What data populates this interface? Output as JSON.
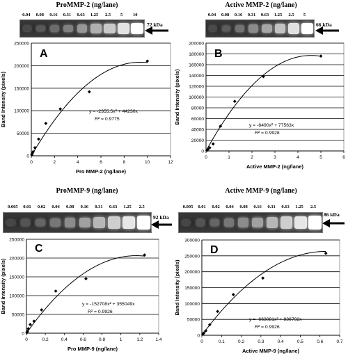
{
  "panels": [
    {
      "id": "A",
      "title": "ProMMP-2 (ng/lane)",
      "lane_labels": [
        "0.04",
        "0.08",
        "0.16",
        "0.31",
        "0.63",
        "1.25",
        "2.5",
        "5",
        "10"
      ],
      "kda": "72 kDa",
      "chart_data": {
        "type": "scatter",
        "panel_letter": "A",
        "xlabel": "Pro MMP-2 (ng/lane)",
        "ylabel": "Band Intensity (pixels)",
        "xlim": [
          0,
          12
        ],
        "ylim": [
          0,
          250000
        ],
        "xticks": [
          0,
          2,
          4,
          6,
          8,
          10,
          12
        ],
        "yticks": [
          0,
          50000,
          100000,
          150000,
          200000,
          250000
        ],
        "ytick_labels": [
          "0",
          "50000",
          "100000",
          "150000",
          "200000",
          "250000"
        ],
        "x": [
          0.04,
          0.08,
          0.16,
          0.31,
          0.63,
          1.25,
          2.5,
          5,
          10
        ],
        "y": [
          2000,
          5000,
          9000,
          18000,
          37000,
          72000,
          104000,
          142000,
          210000
        ],
        "fit": {
          "a": -2355.5,
          "b": 44230,
          "x_start": 0,
          "x_end": 10
        },
        "equation": "y = -2355.5x² + 44230x",
        "r2": "R² = 0.9775",
        "grid": "horizontal"
      }
    },
    {
      "id": "B",
      "title": "Active MMP-2 (ng/lane)",
      "lane_labels": [
        "0.04",
        "0.08",
        "0.16",
        "0.31",
        "0.63",
        "1.25",
        "2.5",
        "5"
      ],
      "kda": "66 kDa",
      "chart_data": {
        "type": "scatter",
        "panel_letter": "B",
        "xlabel": "Active MMP-2 (ng/lane)",
        "ylabel": "Band Intensity (pixels)",
        "xlim": [
          0,
          6
        ],
        "ylim": [
          0,
          200000
        ],
        "xticks": [
          0,
          1,
          2,
          3,
          4,
          5,
          6
        ],
        "yticks": [
          0,
          20000,
          40000,
          60000,
          80000,
          100000,
          120000,
          140000,
          160000,
          180000,
          200000
        ],
        "ytick_labels": [
          "0",
          "20000",
          "40000",
          "60000",
          "80000",
          "100000",
          "120000",
          "140000",
          "160000",
          "180000",
          "200000"
        ],
        "x": [
          0.04,
          0.08,
          0.16,
          0.31,
          0.63,
          1.25,
          2.5,
          5
        ],
        "y": [
          1000,
          3000,
          6000,
          13000,
          46000,
          92000,
          138000,
          176000
        ],
        "fit": {
          "a": -8490,
          "b": 77563,
          "x_start": 0,
          "x_end": 5
        },
        "equation": "y = -8490x² + 77563x",
        "r2": "R² = 0.9928",
        "grid": "horizontal"
      }
    },
    {
      "id": "C",
      "title": "ProMMP-9 (ng/lane)",
      "lane_labels": [
        "0.005",
        "0.01",
        "0.02",
        "0.04",
        "0.08",
        "0.16",
        "0.31",
        "0.63",
        "1.25",
        "2.5"
      ],
      "kda": "92 kDa",
      "chart_data": {
        "type": "scatter",
        "panel_letter": "C",
        "xlabel": "Pro MMP-9 (ng/lane)",
        "ylabel": "Band Intensity (pixels)",
        "xlim": [
          0,
          1.4
        ],
        "ylim": [
          0,
          250000
        ],
        "xticks": [
          0,
          0.2,
          0.4,
          0.6,
          0.8,
          1,
          1.2,
          1.4
        ],
        "yticks": [
          0,
          50000,
          100000,
          150000,
          200000,
          250000
        ],
        "ytick_labels": [
          "0",
          "50000",
          "100000",
          "150000",
          "200000",
          "250000"
        ],
        "x": [
          0.005,
          0.01,
          0.02,
          0.04,
          0.08,
          0.16,
          0.31,
          0.63,
          1.25
        ],
        "y": [
          1500,
          5000,
          12000,
          23000,
          32000,
          62000,
          112000,
          145000,
          208000
        ],
        "fit": {
          "a": -152708,
          "b": 355049,
          "x_start": 0,
          "x_end": 1.25
        },
        "equation": "y = -152708x² + 355049x",
        "r2": "R² = 0.9926",
        "grid": "horizontal"
      }
    },
    {
      "id": "D",
      "title": "Active MMP-9 (ng/lane)",
      "lane_labels": [
        "0.005",
        "0.01",
        "0.02",
        "0.04",
        "0.08",
        "0.16",
        "0.31",
        "0.63",
        "1.25",
        "2.5"
      ],
      "kda": "86 kDa",
      "chart_data": {
        "type": "scatter",
        "panel_letter": "D",
        "xlabel": "Active MMP-9 (ng/lane)",
        "ylabel": "Band Intensity (pixels)",
        "xlim": [
          0,
          0.7
        ],
        "ylim": [
          0,
          300000
        ],
        "xticks": [
          0,
          0.1,
          0.2,
          0.3,
          0.4,
          0.5,
          0.6,
          0.7
        ],
        "yticks": [
          0,
          50000,
          100000,
          150000,
          200000,
          250000,
          300000
        ],
        "ytick_labels": [
          "0",
          "50000",
          "100000",
          "150000",
          "200000",
          "250000",
          "300000"
        ],
        "x": [
          0.005,
          0.01,
          0.02,
          0.04,
          0.08,
          0.16,
          0.31,
          0.63
        ],
        "y": [
          3000,
          7000,
          14000,
          33000,
          75000,
          128000,
          180000,
          258000
        ],
        "fit": {
          "a": -663081,
          "b": 836792,
          "x_start": 0,
          "x_end": 0.63
        },
        "equation": "y = -663081x² + 836792x",
        "r2": "R² = 0.9926",
        "grid": "horizontal"
      }
    }
  ]
}
